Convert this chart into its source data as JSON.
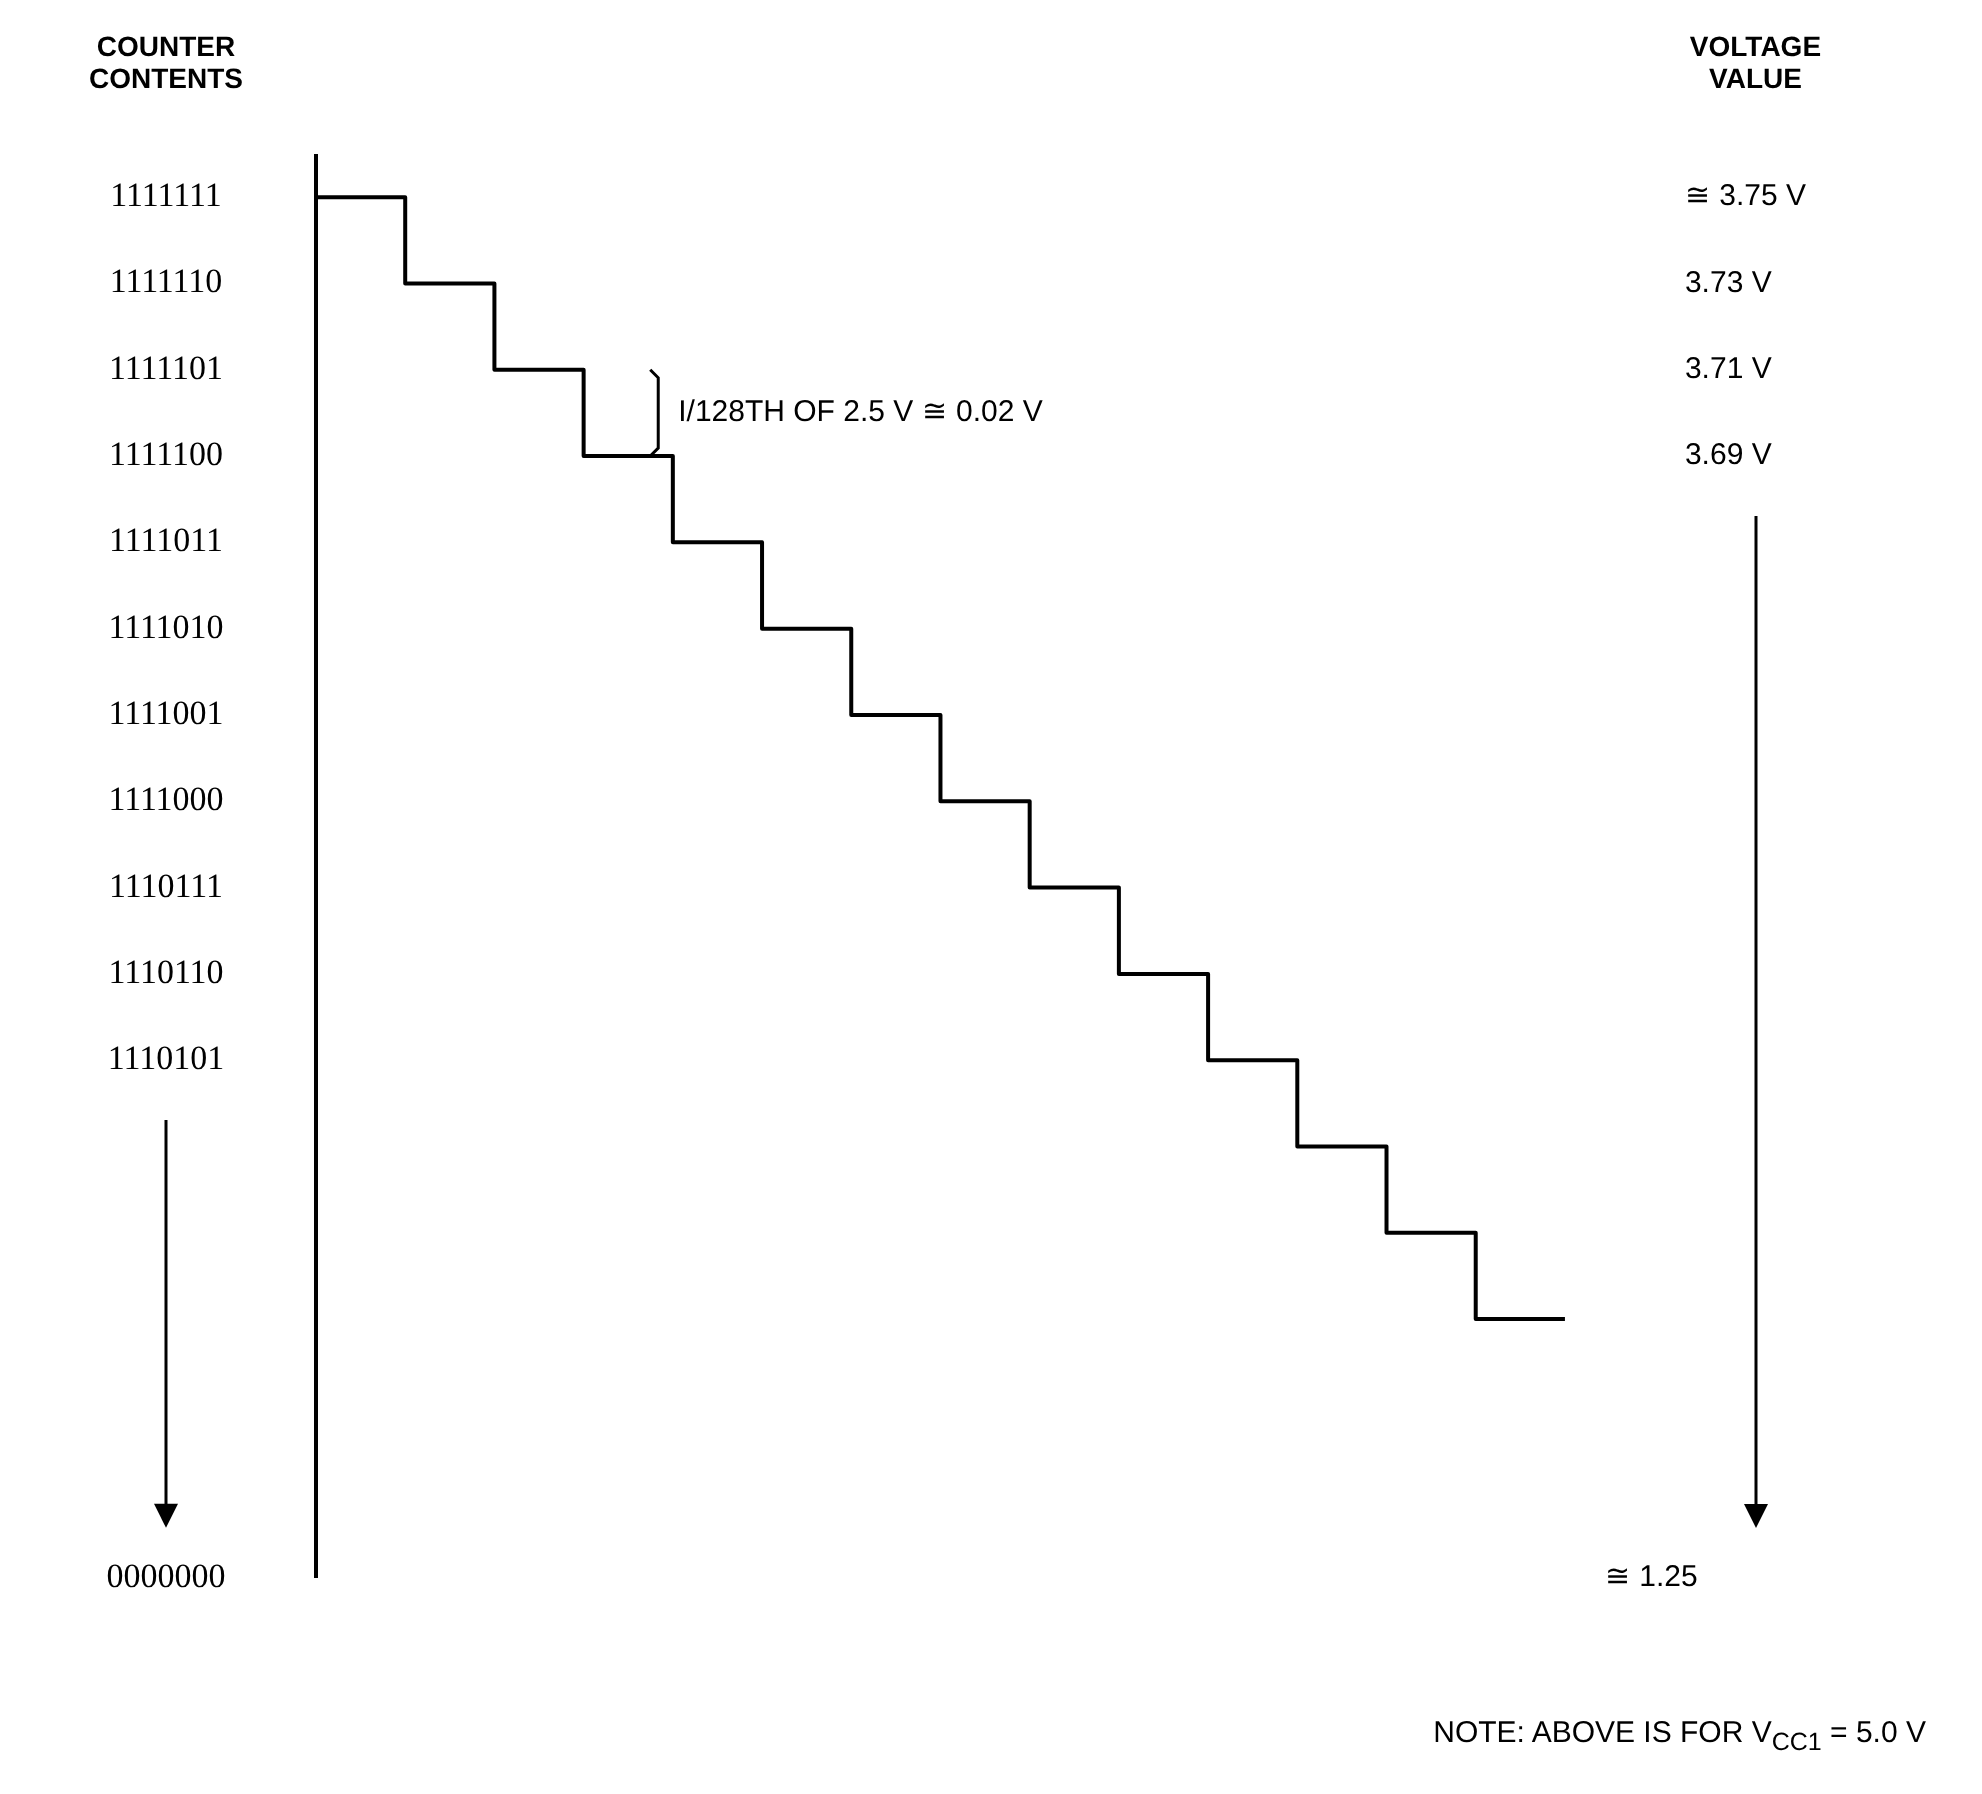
{
  "chart_data": {
    "type": "step",
    "ylabel": "VOLTAGE VALUE",
    "categories": [
      null,
      null,
      null,
      null,
      null,
      null,
      null,
      null,
      null,
      null,
      null,
      null,
      null,
      null,
      null
    ],
    "series": [
      {
        "color": "#000000",
        "values": [
          3.75,
          3.73,
          3.71,
          3.69,
          3.67,
          3.65,
          3.63,
          3.61,
          3.59,
          3.57,
          3.55,
          3.53,
          3.51,
          3.49,
          3.49
        ]
      }
    ],
    "ylim": [
      3.43,
      3.76
    ],
    "yticks": [
      {
        "value": 3.75,
        "label": "≅ 3.75 V"
      },
      {
        "value": 3.73,
        "label": "3.73 V"
      },
      {
        "value": 3.71,
        "label": "3.71 V"
      },
      {
        "value": 3.69,
        "label": "3.69 V"
      }
    ],
    "annotations": [
      "COUNTER CONTENTS",
      "1111111",
      "1111110",
      "1111101",
      "1111100",
      "1111011",
      "1111010",
      "1111001",
      "1111000",
      "1110111",
      "1110110",
      "1110101",
      "0000000",
      "≅ 1.25",
      "I/128TH OF 2.5 V ≅ 0.02 V",
      "NOTE: ABOVE IS FOR V$_{CC1}$ = 5.0 V"
    ],
    "tick_labels": "y",
    "grid": false,
    "legend": false,
    "marker": "none",
    "line_style": "solid"
  }
}
